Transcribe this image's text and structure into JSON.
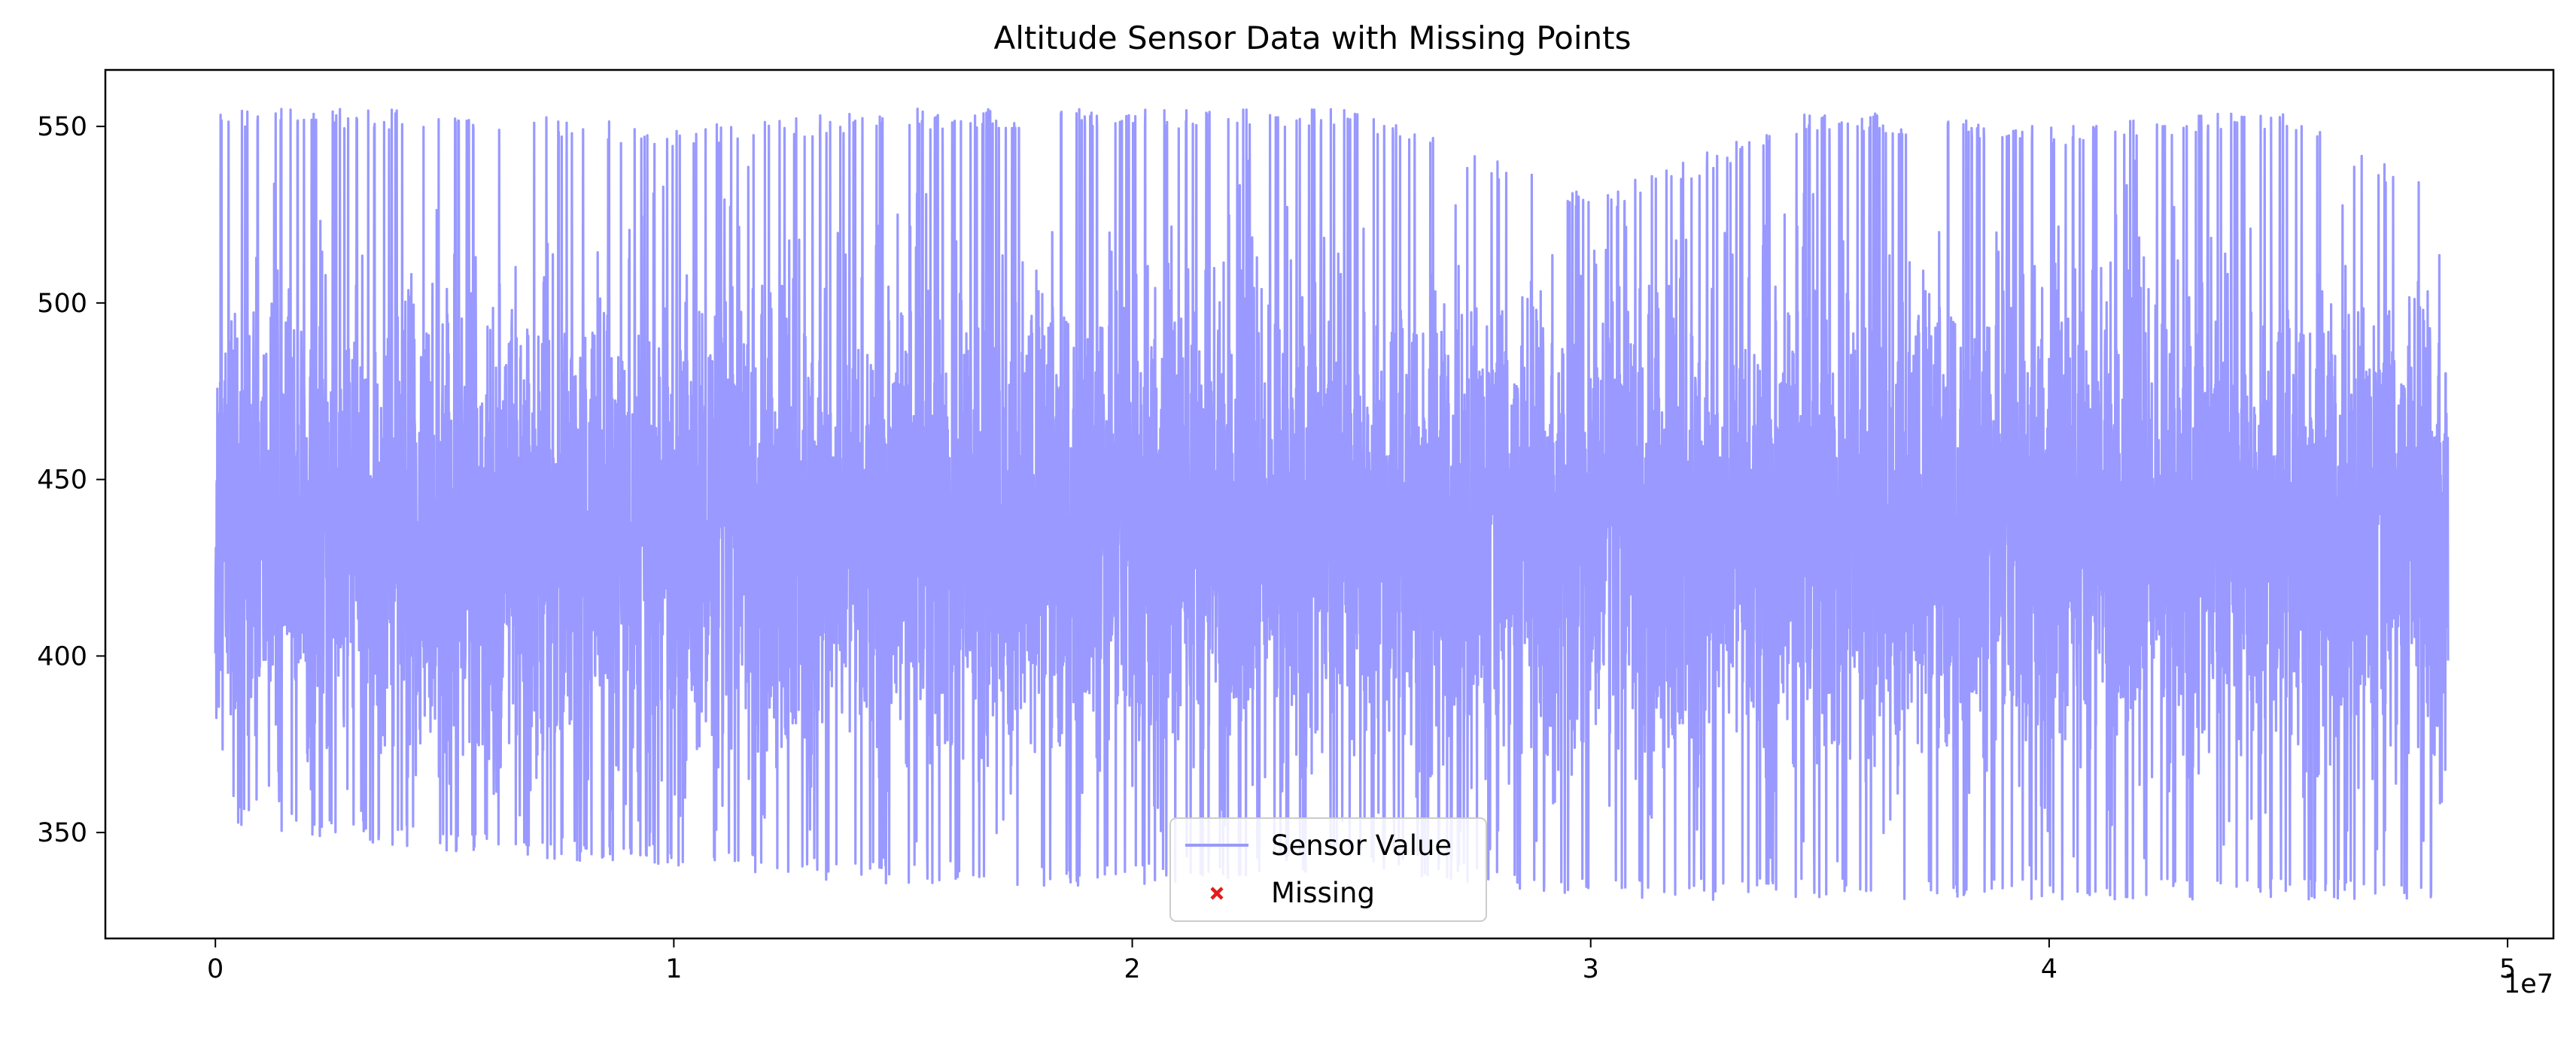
{
  "chart_data": {
    "type": "line",
    "title": "Altitude Sensor Data with Missing Points",
    "xlabel": "",
    "ylabel": "",
    "x_offset_label": "1e7",
    "xlim": [
      -0.24,
      5.1
    ],
    "ylim": [
      320,
      566
    ],
    "x_ticks": [
      0,
      1,
      2,
      3,
      4,
      5
    ],
    "x_tick_labels": [
      "0",
      "1",
      "2",
      "3",
      "4",
      "5"
    ],
    "y_ticks": [
      350,
      400,
      450,
      500,
      550
    ],
    "y_tick_labels": [
      "350",
      "400",
      "450",
      "500",
      "550"
    ],
    "grid": false,
    "legend": {
      "placement": "lower-center"
    },
    "series": [
      {
        "name": "Sensor Value",
        "color": "#9999ff",
        "marker": "line",
        "x_range": [
          0,
          4.87
        ],
        "typical_band": [
          375,
          495
        ],
        "observed_range": [
          331,
          555
        ],
        "values_note": ""
      },
      {
        "name": "Missing",
        "color": "#e41a1c",
        "marker": "x",
        "points": []
      }
    ],
    "envelope": [
      {
        "x": 0.0,
        "low": 352,
        "high": 555
      },
      {
        "x": 0.5,
        "low": 345,
        "high": 555
      },
      {
        "x": 1.0,
        "low": 340,
        "high": 550
      },
      {
        "x": 1.5,
        "low": 335,
        "high": 555
      },
      {
        "x": 2.0,
        "low": 335,
        "high": 555
      },
      {
        "x": 2.5,
        "low": 340,
        "high": 555
      },
      {
        "x": 3.0,
        "low": 331,
        "high": 530
      },
      {
        "x": 3.5,
        "low": 331,
        "high": 555
      },
      {
        "x": 4.0,
        "low": 331,
        "high": 550
      },
      {
        "x": 4.5,
        "low": 331,
        "high": 555
      },
      {
        "x": 4.87,
        "low": 331,
        "high": 530
      }
    ]
  }
}
